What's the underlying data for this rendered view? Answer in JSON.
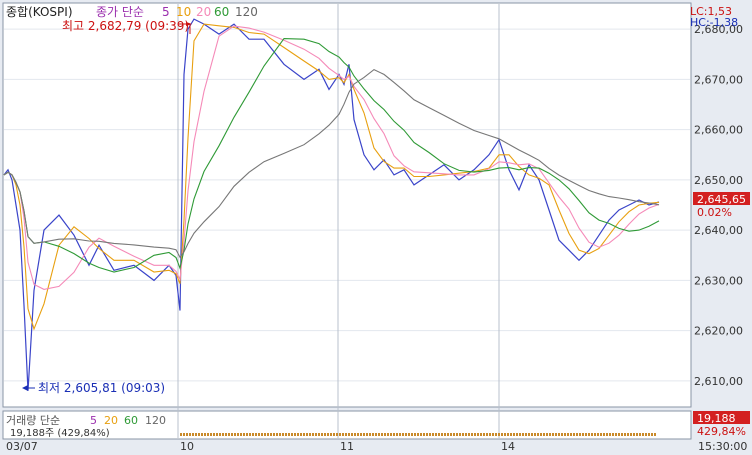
{
  "chart_data": {
    "type": "line",
    "title": "종합(KOSPI)",
    "legend": {
      "price_label": "종가 단순",
      "ma_periods": [
        "5",
        "10",
        "20",
        "60",
        "120"
      ],
      "volume_label": "거래량 단순",
      "volume_ma_periods": [
        "5",
        "20",
        "60",
        "120"
      ]
    },
    "colors": {
      "price": "#3a44c9",
      "ma5": "#e8a010",
      "ma10": "#f58ab8",
      "ma20": "#2f9a36",
      "ma60": "#777777",
      "ma120": "#777777",
      "label_red": "#cc1111",
      "label_blue": "#1a2fb5"
    },
    "x_labels": [
      "03/07",
      "10",
      "11",
      "14",
      "15:30:00"
    ],
    "y_ticks": [
      "2,680,00",
      "2,670,00",
      "2,660,00",
      "2,650,00",
      "2,640,00",
      "2,630,00",
      "2,620,00",
      "2,610,00"
    ],
    "ylim": [
      2605,
      2685
    ],
    "current_price": "2,645,65",
    "change_pct": "0.02%",
    "lc": "LC:1,53",
    "hc": "HC:-1,38",
    "high_annotation": "최고 2,682,79 (09:39)",
    "low_annotation": "최저 2,605,81 (09:03)",
    "volume_value": "19,188",
    "volume_pct": "429,84%",
    "volume_readout": "19,188주 (429,84%)",
    "series": [
      {
        "name": "종가",
        "x": [
          0,
          4,
          8,
          12,
          16,
          20,
          24,
          30,
          40,
          55,
          70,
          85,
          95,
          110,
          130,
          150,
          165,
          172,
          176,
          180,
          184,
          190,
          200,
          215,
          230,
          245,
          260,
          280,
          300,
          315,
          325,
          335,
          340,
          345,
          350,
          360,
          370,
          380,
          390,
          400,
          410,
          425,
          440,
          455,
          470,
          485,
          495,
          505,
          515,
          525,
          535,
          545,
          555,
          565,
          575,
          585,
          595,
          605,
          615,
          625,
          635,
          645,
          655
        ],
        "y": [
          2651,
          2652,
          2650,
          2645,
          2640,
          2625,
          2608,
          2628,
          2640,
          2643,
          2639,
          2633,
          2637,
          2632,
          2633,
          2630,
          2633,
          2631,
          2624,
          2671,
          2680,
          2682,
          2681,
          2679,
          2681,
          2678,
          2678,
          2673,
          2670,
          2672,
          2668,
          2671,
          2669,
          2673,
          2662,
          2655,
          2652,
          2654,
          2651,
          2652,
          2649,
          2651,
          2653,
          2650,
          2652,
          2655,
          2658,
          2652,
          2648,
          2653,
          2650,
          2644,
          2638,
          2636,
          2634,
          2636,
          2639,
          2642,
          2644,
          2645,
          2646,
          2645,
          2645.6
        ]
      }
    ]
  }
}
